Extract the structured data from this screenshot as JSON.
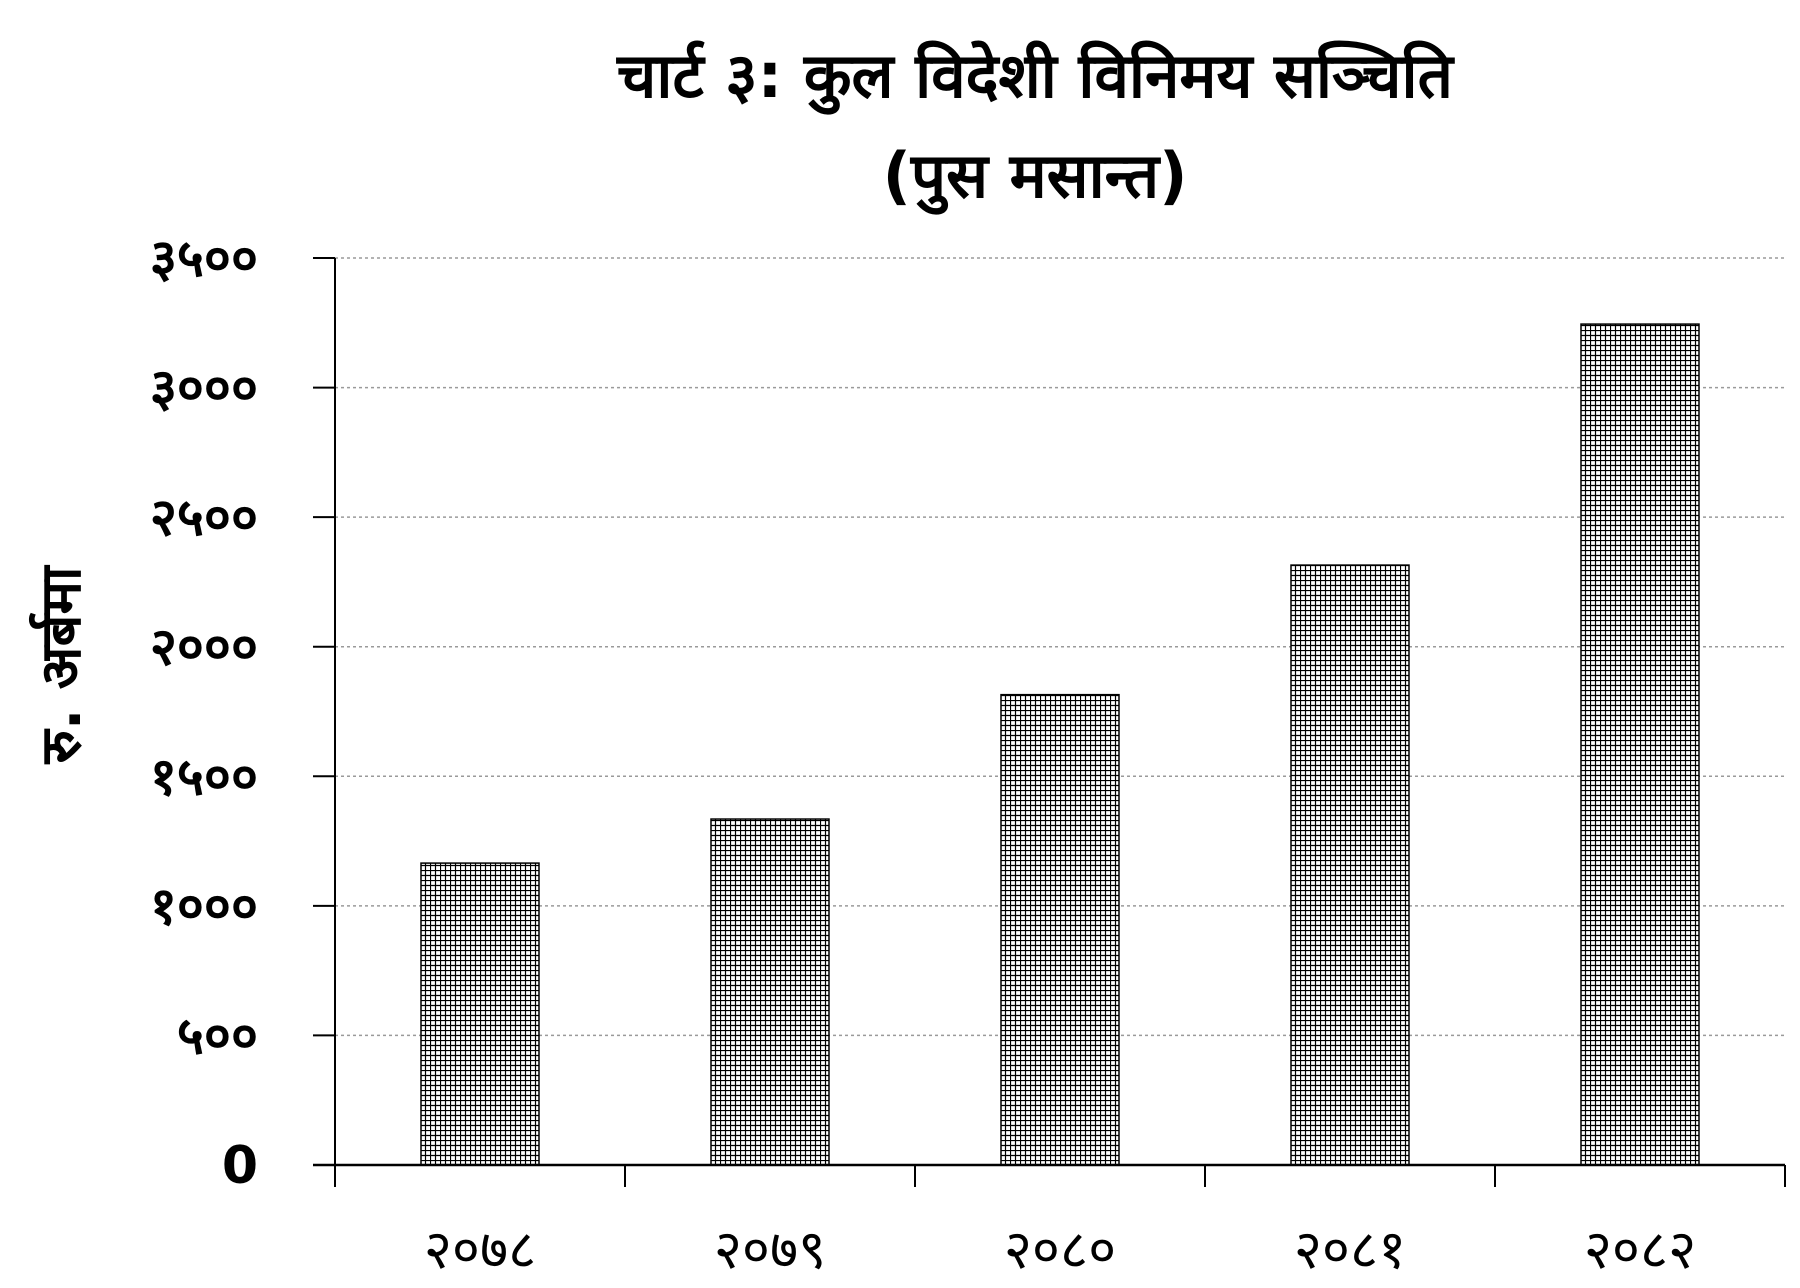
{
  "chart_data": {
    "type": "bar",
    "title": "चार्ट ३: कुल विदेशी विनिमय सञ्चिति",
    "subtitle": "(पुस मसान्त)",
    "ylabel": "रु. अर्बमा",
    "xlabel": "",
    "categories": [
      "२०७८",
      "२०७९",
      "२०८०",
      "२०८१",
      "२०८२"
    ],
    "values": [
      1165,
      1335,
      1815,
      2315,
      3245
    ],
    "ylim": [
      0,
      3500
    ],
    "yticks": [
      0,
      500,
      1000,
      1500,
      2000,
      2500,
      3000,
      3500
    ],
    "ytick_labels": [
      "0",
      "५००",
      "१०००",
      "१५००",
      "२०००",
      "२५००",
      "३०००",
      "३५००"
    ],
    "grid": true,
    "grid_style": "dotted",
    "legend": "none",
    "bar_fill": "crosshatch-grid",
    "colors": {
      "bar_line": "#000000",
      "grid": "#9a9a9a",
      "axis": "#000000",
      "background": "#ffffff"
    }
  }
}
